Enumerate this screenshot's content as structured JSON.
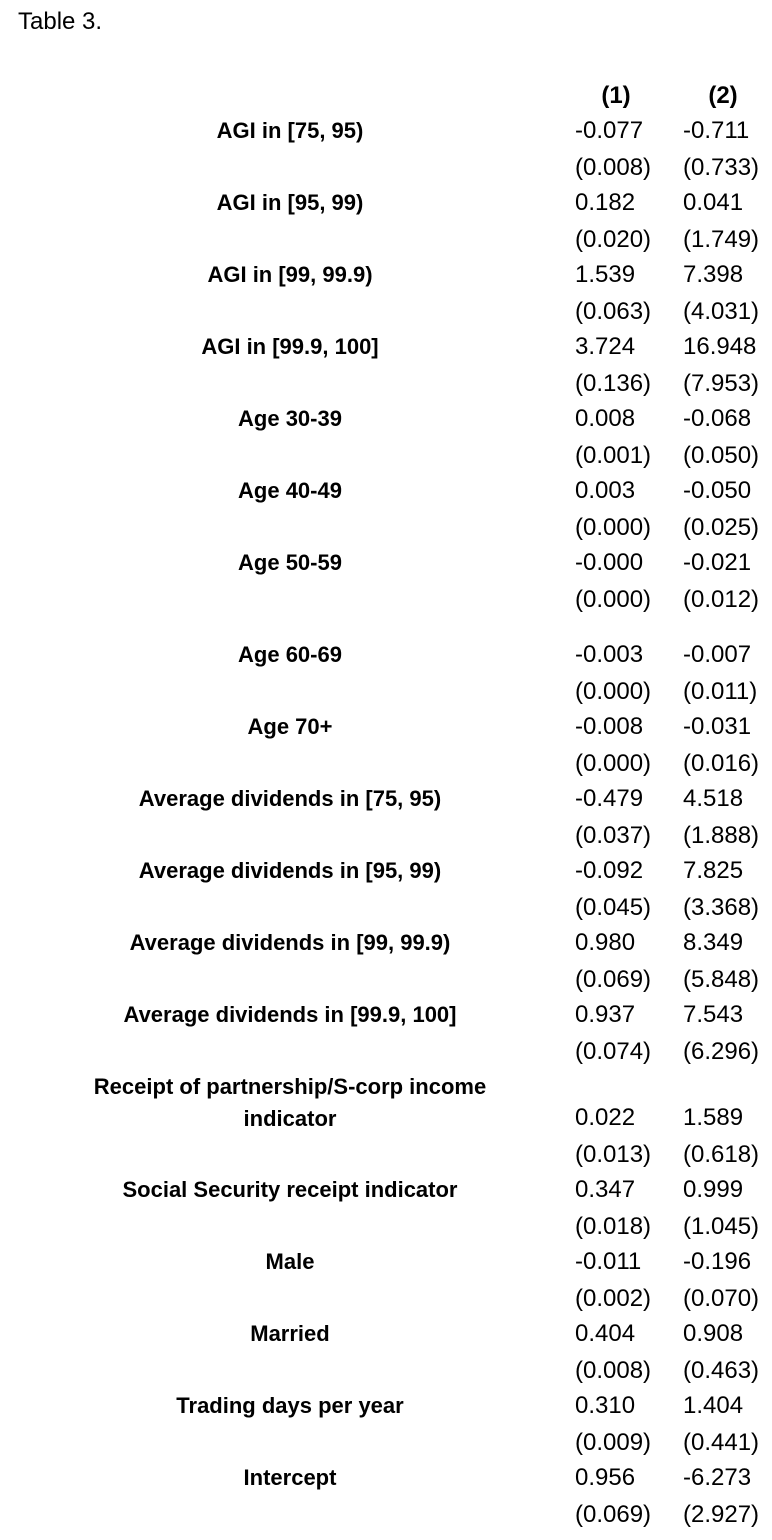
{
  "title": "Table 3.",
  "columns": [
    "(1)",
    "(2)"
  ],
  "rows": [
    {
      "label": "AGI in [75, 95)",
      "coef": [
        "-0.077",
        "-0.711"
      ],
      "se": [
        "(0.008)",
        "(0.733)"
      ]
    },
    {
      "label": "AGI in [95, 99)",
      "coef": [
        "0.182",
        "0.041"
      ],
      "se": [
        "(0.020)",
        "(1.749)"
      ]
    },
    {
      "label": "AGI in [99, 99.9)",
      "coef": [
        "1.539",
        "7.398"
      ],
      "se": [
        "(0.063)",
        "(4.031)"
      ]
    },
    {
      "label": "AGI in [99.9, 100]",
      "coef": [
        "3.724",
        "16.948"
      ],
      "se": [
        "(0.136)",
        "(7.953)"
      ]
    },
    {
      "label": "Age 30-39",
      "coef": [
        "0.008",
        "-0.068"
      ],
      "se": [
        "(0.001)",
        "(0.050)"
      ]
    },
    {
      "label": "Age 40-49",
      "coef": [
        "0.003",
        "-0.050"
      ],
      "se": [
        "(0.000)",
        "(0.025)"
      ]
    },
    {
      "label": "Age 50-59",
      "coef": [
        "-0.000",
        "-0.021"
      ],
      "se": [
        "(0.000)",
        "(0.012)"
      ]
    },
    {
      "label": "Age 60-69",
      "coef": [
        "-0.003",
        "-0.007"
      ],
      "se": [
        "(0.000)",
        "(0.011)"
      ]
    },
    {
      "label": "Age 70+",
      "coef": [
        "-0.008",
        "-0.031"
      ],
      "se": [
        "(0.000)",
        "(0.016)"
      ]
    },
    {
      "label": "Average dividends in [75, 95)",
      "coef": [
        "-0.479",
        "4.518"
      ],
      "se": [
        "(0.037)",
        "(1.888)"
      ]
    },
    {
      "label": "Average dividends in [95, 99)",
      "coef": [
        "-0.092",
        "7.825"
      ],
      "se": [
        "(0.045)",
        "(3.368)"
      ]
    },
    {
      "label": "Average dividends in [99, 99.9)",
      "coef": [
        "0.980",
        "8.349"
      ],
      "se": [
        "(0.069)",
        "(5.848)"
      ]
    },
    {
      "label": "Average dividends in [99.9, 100]",
      "coef": [
        "0.937",
        "7.543"
      ],
      "se": [
        "(0.074)",
        "(6.296)"
      ]
    },
    {
      "label_lines": [
        "Receipt of partnership/S-corp income",
        "indicator"
      ],
      "coef": [
        "0.022",
        "1.589"
      ],
      "se": [
        "(0.013)",
        "(0.618)"
      ]
    },
    {
      "label": "Social Security receipt indicator",
      "coef": [
        "0.347",
        "0.999"
      ],
      "se": [
        "(0.018)",
        "(1.045)"
      ]
    },
    {
      "label": "Male",
      "coef": [
        "-0.011",
        "-0.196"
      ],
      "se": [
        "(0.002)",
        "(0.070)"
      ]
    },
    {
      "label": "Married",
      "coef": [
        "0.404",
        "0.908"
      ],
      "se": [
        "(0.008)",
        "(0.463)"
      ]
    },
    {
      "label": "Trading days per year",
      "coef": [
        "0.310",
        "1.404"
      ],
      "se": [
        "(0.009)",
        "(0.441)"
      ]
    },
    {
      "label": "Intercept",
      "coef": [
        "0.956",
        "-6.273"
      ],
      "se": [
        "(0.069)",
        "(2.927)"
      ]
    }
  ]
}
